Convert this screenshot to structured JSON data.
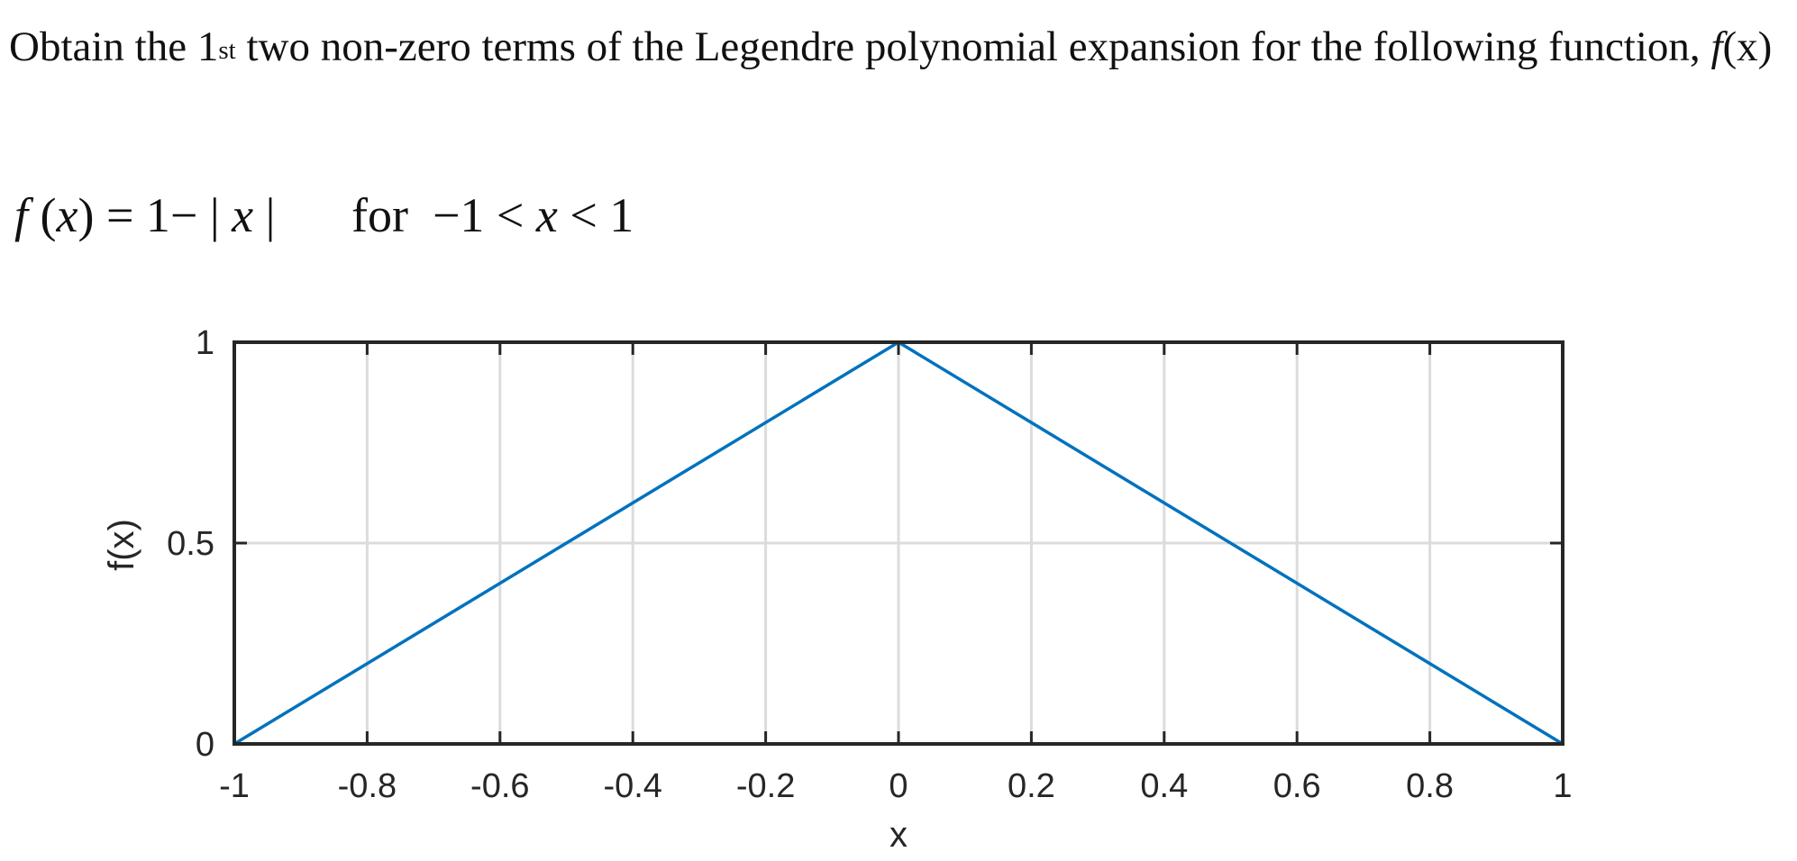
{
  "problem": {
    "text_part1": "Obtain the 1",
    "ordinal_suffix": "st",
    "text_part2": " two non-zero terms of the Legendre polynomial expansion for the following function, ",
    "fx_name": "f",
    "fx_arg": "(x)"
  },
  "formula": {
    "lhs_f": "f",
    "lhs_arg_open": " (",
    "lhs_x": "x",
    "lhs_close": ") = 1− | ",
    "abs_x": "x",
    "abs_close": " |",
    "condition_for": "for  −1 < ",
    "condition_x": "x",
    "condition_tail": " < 1"
  },
  "chart_data": {
    "type": "line",
    "xlabel": "x",
    "ylabel": "f(x)",
    "xlim": [
      -1,
      1
    ],
    "ylim": [
      0,
      1
    ],
    "grid": true,
    "x_ticks": [
      "-1",
      "-0.8",
      "-0.6",
      "-0.4",
      "-0.2",
      "0",
      "0.2",
      "0.4",
      "0.6",
      "0.8",
      "1"
    ],
    "y_ticks": [
      "0",
      "0.5",
      "1"
    ],
    "series": [
      {
        "x": [
          -1,
          0,
          1
        ],
        "y": [
          0,
          1,
          0
        ],
        "color": "#0072BD"
      }
    ]
  }
}
